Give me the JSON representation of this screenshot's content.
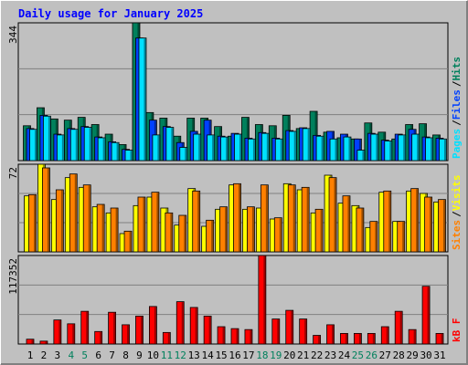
{
  "title": "Daily usage for January 2025",
  "categories": [
    "1",
    "2",
    "3",
    "4",
    "5",
    "6",
    "7",
    "8",
    "9",
    "10",
    "11",
    "12",
    "13",
    "14",
    "15",
    "16",
    "17",
    "18",
    "19",
    "20",
    "21",
    "22",
    "23",
    "24",
    "25",
    "26",
    "27",
    "28",
    "29",
    "30",
    "31"
  ],
  "category_colors": [
    "#000000",
    "#000000",
    "#000000",
    "#00805c",
    "#00805c",
    "#000000",
    "#000000",
    "#000000",
    "#000000",
    "#000000",
    "#00805c",
    "#00805c",
    "#000000",
    "#000000",
    "#000000",
    "#000000",
    "#000000",
    "#00805c",
    "#00805c",
    "#000000",
    "#000000",
    "#000000",
    "#000000",
    "#000000",
    "#00805c",
    "#00805c",
    "#000000",
    "#000000",
    "#000000",
    "#000000",
    "#000000"
  ],
  "legend_separator": "/",
  "chart_data": [
    {
      "type": "bar",
      "ylim": [
        0,
        344
      ],
      "yticks": [
        344
      ],
      "series": [
        {
          "name": "Hits",
          "color": "#00805c",
          "values": [
            87,
            132,
            104,
            101,
            108,
            90,
            66,
            40,
            344,
            120,
            106,
            61,
            106,
            106,
            85,
            61,
            108,
            90,
            87,
            113,
            80,
            123,
            71,
            57,
            54,
            94,
            71,
            54,
            90,
            92,
            64
          ]
        },
        {
          "name": "Files",
          "color": "#0040ff",
          "values": [
            80,
            113,
            66,
            80,
            85,
            59,
            47,
            28,
            306,
            101,
            85,
            45,
            73,
            101,
            61,
            68,
            56,
            70,
            56,
            75,
            82,
            63,
            73,
            66,
            54,
            68,
            51,
            66,
            78,
            59,
            56
          ]
        },
        {
          "name": "Pages",
          "color": "#00e0ff",
          "values": [
            78,
            111,
            64,
            78,
            83,
            57,
            45,
            26,
            306,
            64,
            83,
            33,
            66,
            64,
            59,
            66,
            54,
            68,
            54,
            73,
            80,
            61,
            54,
            59,
            26,
            66,
            49,
            64,
            66,
            57,
            54
          ]
        }
      ]
    },
    {
      "type": "bar",
      "ylim": [
        0,
        72
      ],
      "yticks": [
        72
      ],
      "series": [
        {
          "name": "Visits",
          "color": "#ffff00",
          "values": [
            46,
            72,
            43,
            61,
            53,
            37,
            32,
            15,
            38,
            45,
            36,
            22,
            52,
            21,
            35,
            55,
            35,
            36,
            27,
            56,
            51,
            32,
            63,
            40,
            38,
            20,
            49,
            25,
            50,
            48,
            41
          ]
        },
        {
          "name": "Sites",
          "color": "#ff8000",
          "values": [
            47,
            69,
            51,
            64,
            55,
            39,
            36,
            17,
            45,
            49,
            32,
            30,
            50,
            26,
            37,
            56,
            37,
            55,
            28,
            55,
            53,
            35,
            61,
            46,
            36,
            25,
            50,
            25,
            52,
            45,
            43
          ]
        }
      ]
    },
    {
      "type": "bar",
      "ylim": [
        0,
        117352
      ],
      "yticks": [
        117352
      ],
      "series": [
        {
          "name": "kB F",
          "color": "#ff0000",
          "values": [
            6378,
            3827,
            31890,
            26788,
            43370,
            16583,
            42095,
            25512,
            36992,
            49748,
            15307,
            56126,
            48473,
            36992,
            22961,
            20410,
            19134,
            117352,
            33166,
            44646,
            33166,
            11480,
            25512,
            14032,
            14032,
            14032,
            22961,
            43370,
            19134,
            76536,
            14032
          ]
        }
      ]
    }
  ]
}
